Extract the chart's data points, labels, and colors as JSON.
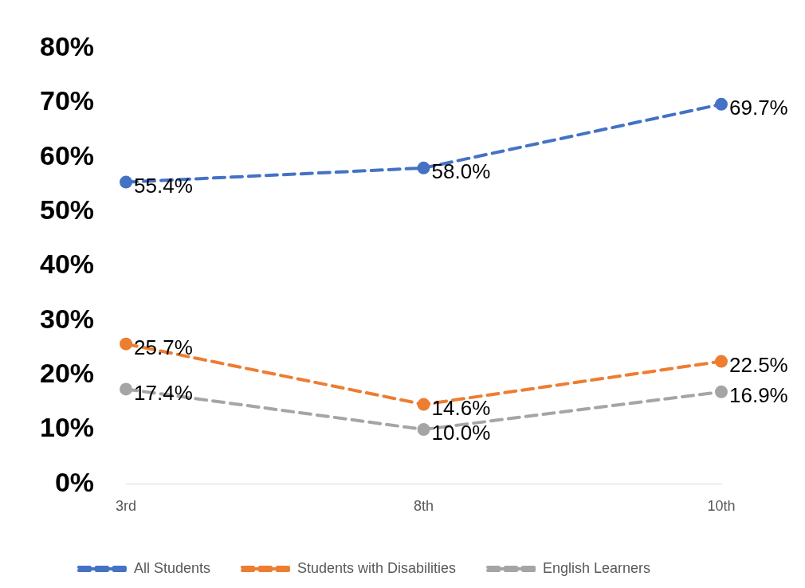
{
  "chart_data": {
    "type": "line",
    "categories": [
      "3rd",
      "8th",
      "10th"
    ],
    "series": [
      {
        "name": "All Students",
        "color": "#4472c4",
        "values": [
          55.4,
          58.0,
          69.7
        ]
      },
      {
        "name": "Students with Disabilities",
        "color": "#ed7d31",
        "values": [
          25.7,
          14.6,
          22.5
        ]
      },
      {
        "name": "English Learners",
        "color": "#a5a5a5",
        "values": [
          17.4,
          10.0,
          16.9
        ]
      }
    ],
    "ylim": [
      0,
      80
    ],
    "yticks": [
      {
        "value": 0,
        "label": "0%"
      },
      {
        "value": 10,
        "label": "10%"
      },
      {
        "value": 20,
        "label": "20%"
      },
      {
        "value": 30,
        "label": "30%"
      },
      {
        "value": 40,
        "label": "40%"
      },
      {
        "value": 50,
        "label": "50%"
      },
      {
        "value": 60,
        "label": "60%"
      },
      {
        "value": 70,
        "label": "70%"
      },
      {
        "value": 80,
        "label": "80%"
      }
    ],
    "grid": false,
    "legend": "bottom",
    "marker": "circle",
    "line_style": "dashed",
    "value_labels": [
      [
        "55.4%",
        "58.0%",
        "69.7%"
      ],
      [
        "25.7%",
        "14.6%",
        "22.5%"
      ],
      [
        "17.4%",
        "10.0%",
        "16.9%"
      ]
    ]
  }
}
